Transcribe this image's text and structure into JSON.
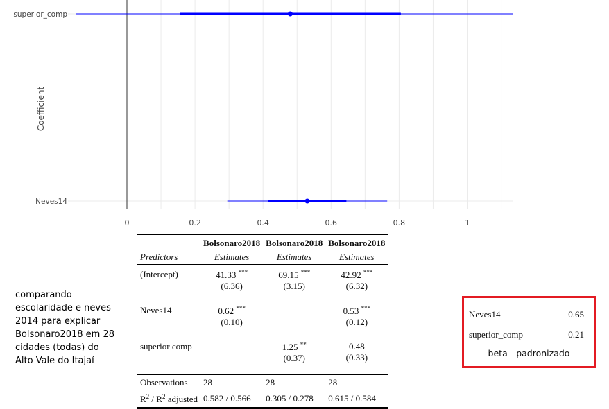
{
  "chart_data": {
    "type": "coefficient-plot",
    "ylabel": "Coefficient",
    "xlim": [
      0,
      1.15
    ],
    "x_ticks": [
      "0",
      "0.2",
      "0.4",
      "0.6",
      "0.8",
      "1"
    ],
    "x_tick_values": [
      0,
      0.2,
      0.4,
      0.6,
      0.8,
      1
    ],
    "zero_line": 0,
    "color": "#0000ff",
    "grid": true,
    "coefficients": [
      {
        "label": "superior_comp",
        "estimate": 0.48,
        "inner": [
          0.155,
          0.805
        ],
        "outer": [
          -0.15,
          1.15
        ]
      },
      {
        "label": "Neves14",
        "estimate": 0.53,
        "inner": [
          0.415,
          0.645
        ],
        "outer": [
          0.295,
          0.765
        ]
      }
    ]
  },
  "table": {
    "models": [
      "Bolsonaro2018",
      "Bolsonaro2018",
      "Bolsonaro2018"
    ],
    "predictors_label": "Predictors",
    "estimates_label": "Estimates",
    "rows": [
      {
        "name": "(Intercept)",
        "cells": [
          {
            "est": "41.33",
            "sig": "***",
            "se": "(6.36)"
          },
          {
            "est": "69.15",
            "sig": "***",
            "se": "(3.15)"
          },
          {
            "est": "42.92",
            "sig": "***",
            "se": "(6.32)"
          }
        ]
      },
      {
        "name": "Neves14",
        "cells": [
          {
            "est": "0.62",
            "sig": "***",
            "se": "(0.10)"
          },
          {
            "est": "",
            "sig": "",
            "se": ""
          },
          {
            "est": "0.53",
            "sig": "***",
            "se": "(0.12)"
          }
        ]
      },
      {
        "name": "superior comp",
        "cells": [
          {
            "est": "",
            "sig": "",
            "se": ""
          },
          {
            "est": "1.25",
            "sig": "**",
            "se": "(0.37)"
          },
          {
            "est": "0.48",
            "sig": "",
            "se": "(0.33)"
          }
        ]
      }
    ],
    "observations_label": "Observations",
    "observations": [
      "28",
      "28",
      "28"
    ],
    "r2_label_r": "R",
    "r2_label_sup": "2",
    "r2_label_mid": " / R",
    "r2_label_sup2": "2",
    "r2_label_end": " adjusted",
    "r2": [
      "0.582 / 0.566",
      "0.305 / 0.278",
      "0.615 / 0.584"
    ]
  },
  "note": "comparando escolaridade e neves 2014 para explicar Bolsonaro2018 em 28 cidades (todas) do Alto Vale do Itajaí",
  "beta_box": {
    "rows": [
      {
        "name": "Neves14",
        "value": "0.65"
      },
      {
        "name": "superior_comp",
        "value": "0.21"
      }
    ],
    "caption": "beta - padronizado",
    "border_color": "#e31b23"
  }
}
